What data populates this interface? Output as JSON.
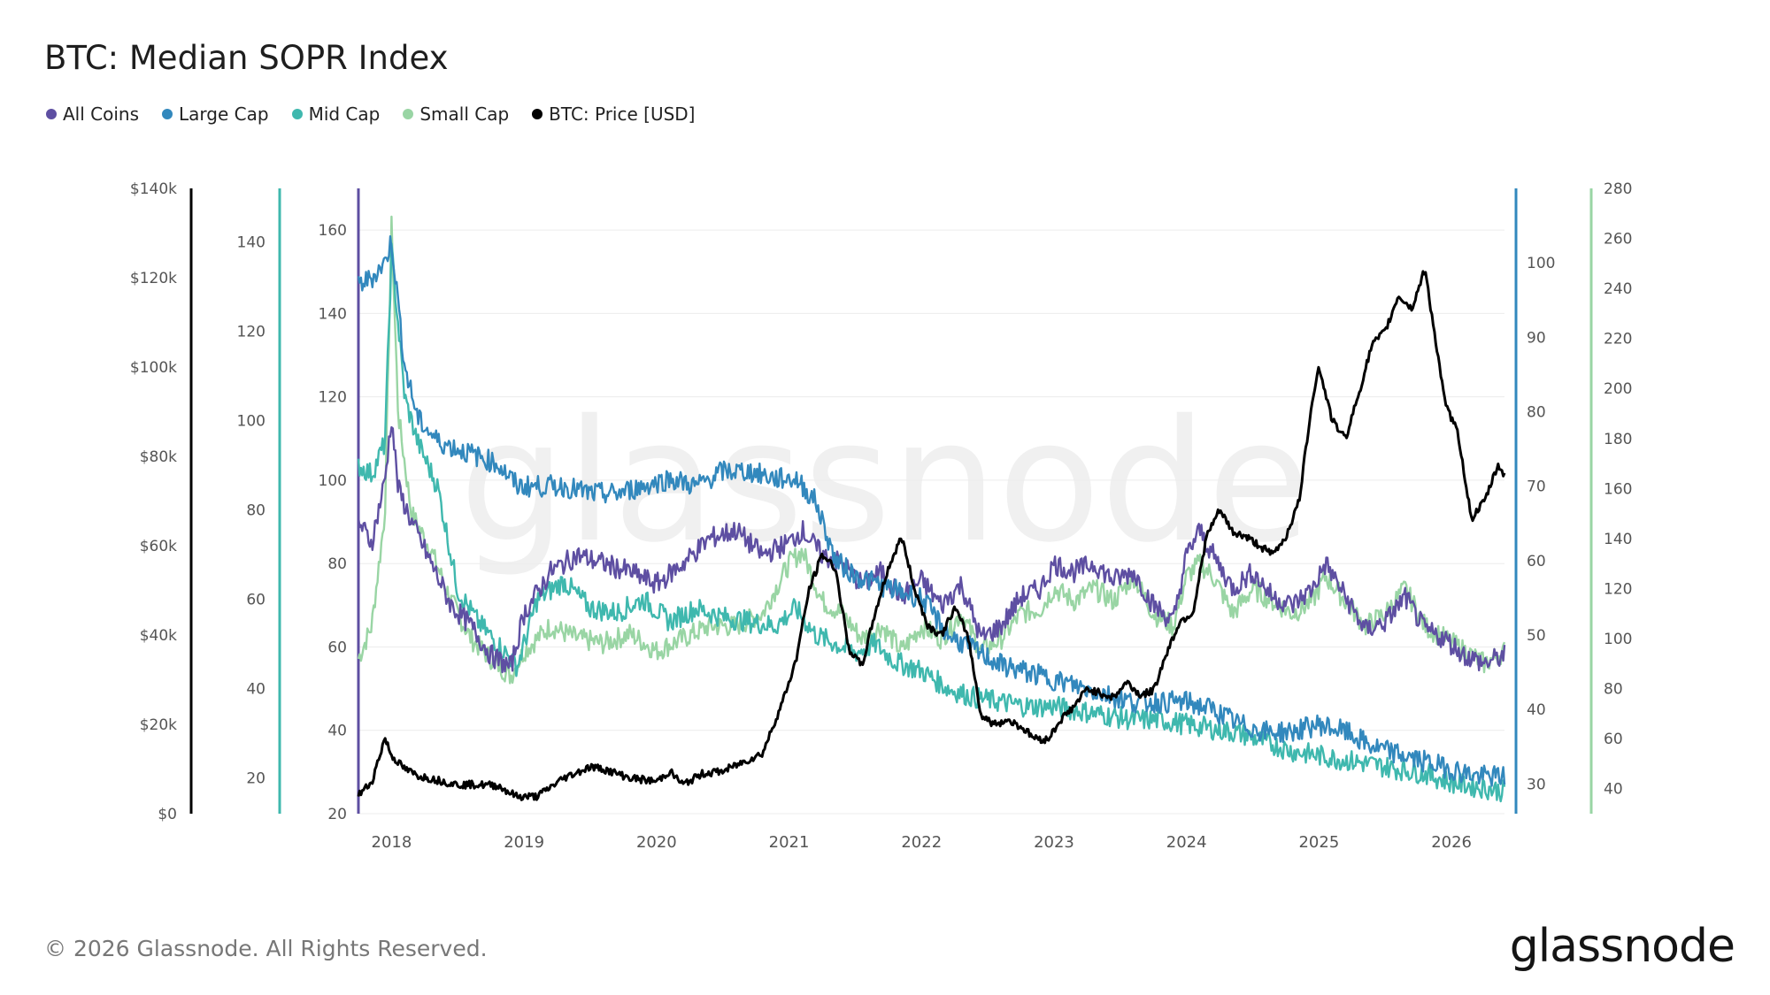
{
  "title": "BTC: Median SOPR Index",
  "footer": "© 2026 Glassnode. All Rights Reserved.",
  "brand": "glassnode",
  "watermark": "glassnode",
  "colors": {
    "all_coins": "#5e4fa2",
    "large_cap": "#3288bd",
    "mid_cap": "#3fb8ae",
    "small_cap": "#99d5a4",
    "price": "#000000"
  },
  "legend": [
    {
      "label": "All Coins",
      "color": "#5e4fa2"
    },
    {
      "label": "Large Cap",
      "color": "#3288bd"
    },
    {
      "label": "Mid Cap",
      "color": "#3fb8ae"
    },
    {
      "label": "Small Cap",
      "color": "#99d5a4"
    },
    {
      "label": "BTC: Price [USD]",
      "color": "#000000"
    }
  ],
  "chart_data": {
    "type": "line",
    "title": "BTC: Median SOPR Index",
    "x_ticks": [
      "2018",
      "2019",
      "2020",
      "2021",
      "2022",
      "2023",
      "2024",
      "2025",
      "2026"
    ],
    "x_range": [
      2017.75,
      2026.4
    ],
    "grid": true,
    "legend_position": "top-left",
    "axes": {
      "price": {
        "ticks": [
          "$0",
          "$20k",
          "$40k",
          "$60k",
          "$80k",
          "$100k",
          "$120k",
          "$140k"
        ],
        "range": [
          0,
          140000
        ],
        "color": "#000000"
      },
      "mid_cap": {
        "ticks": [
          "20",
          "40",
          "60",
          "80",
          "100",
          "120",
          "140"
        ],
        "range": [
          12,
          152
        ],
        "color": "#3fb8ae"
      },
      "all_coins": {
        "ticks": [
          "20",
          "40",
          "60",
          "80",
          "100",
          "120",
          "140",
          "160"
        ],
        "range": [
          20,
          170
        ],
        "color": "#5e4fa2"
      },
      "large_cap": {
        "ticks": [
          "30",
          "40",
          "50",
          "60",
          "70",
          "80",
          "90",
          "100"
        ],
        "range": [
          26,
          110
        ],
        "color": "#3288bd"
      },
      "small_cap": {
        "ticks": [
          "40",
          "60",
          "80",
          "100",
          "120",
          "140",
          "160",
          "180",
          "200",
          "220",
          "240",
          "260",
          "280"
        ],
        "range": [
          30,
          280
        ],
        "color": "#99d5a4"
      }
    },
    "series": [
      {
        "name": "Small Cap",
        "axis": "small_cap",
        "color": "#99d5a4",
        "x": [
          2017.75,
          2017.85,
          2017.95,
          2018.0,
          2018.05,
          2018.15,
          2018.3,
          2018.45,
          2018.6,
          2018.75,
          2018.9,
          2019.0,
          2019.2,
          2019.4,
          2019.6,
          2019.8,
          2020.0,
          2020.2,
          2020.4,
          2020.6,
          2020.8,
          2021.0,
          2021.1,
          2021.25,
          2021.4,
          2021.55,
          2021.7,
          2021.85,
          2022.0,
          2022.15,
          2022.3,
          2022.45,
          2022.6,
          2022.75,
          2022.9,
          2023.0,
          2023.15,
          2023.3,
          2023.45,
          2023.6,
          2023.75,
          2023.9,
          2024.0,
          2024.1,
          2024.2,
          2024.35,
          2024.5,
          2024.65,
          2024.8,
          2024.95,
          2025.05,
          2025.2,
          2025.35,
          2025.5,
          2025.65,
          2025.8,
          2025.95,
          2026.1,
          2026.25,
          2026.4
        ],
        "y": [
          92,
          105,
          150,
          265,
          190,
          150,
          135,
          115,
          100,
          92,
          85,
          95,
          105,
          100,
          98,
          102,
          95,
          100,
          105,
          105,
          110,
          130,
          135,
          115,
          110,
          100,
          105,
          95,
          105,
          100,
          110,
          95,
          100,
          110,
          112,
          120,
          115,
          120,
          115,
          125,
          110,
          105,
          125,
          130,
          125,
          110,
          120,
          115,
          110,
          115,
          125,
          115,
          105,
          110,
          120,
          105,
          100,
          95,
          90,
          95
        ]
      },
      {
        "name": "Mid Cap",
        "axis": "mid_cap",
        "color": "#3fb8ae",
        "x": [
          2017.75,
          2017.85,
          2017.95,
          2018.0,
          2018.1,
          2018.2,
          2018.35,
          2018.5,
          2018.65,
          2018.8,
          2018.95,
          2019.1,
          2019.3,
          2019.5,
          2019.7,
          2019.9,
          2020.1,
          2020.3,
          2020.5,
          2020.7,
          2020.9,
          2021.05,
          2021.2,
          2021.35,
          2021.5,
          2021.65,
          2021.8,
          2022.0,
          2022.2,
          2022.4,
          2022.6,
          2022.8,
          2023.0,
          2023.2,
          2023.4,
          2023.6,
          2023.8,
          2024.0,
          2024.2,
          2024.4,
          2024.6,
          2024.8,
          2025.0,
          2025.2,
          2025.4,
          2025.6,
          2025.8,
          2026.0,
          2026.2,
          2026.4
        ],
        "y": [
          90,
          88,
          95,
          138,
          105,
          95,
          85,
          62,
          55,
          50,
          45,
          60,
          64,
          58,
          57,
          60,
          55,
          58,
          56,
          55,
          54,
          58,
          52,
          50,
          48,
          50,
          46,
          44,
          40,
          38,
          37,
          36,
          36,
          35,
          34,
          33,
          33,
          32,
          31,
          30,
          28,
          26,
          25,
          24,
          23,
          22,
          21,
          19,
          18,
          17
        ]
      },
      {
        "name": "All Coins",
        "axis": "all_coins",
        "color": "#5e4fa2",
        "x": [
          2017.75,
          2017.85,
          2017.95,
          2018.0,
          2018.05,
          2018.15,
          2018.3,
          2018.45,
          2018.6,
          2018.75,
          2018.9,
          2019.0,
          2019.2,
          2019.4,
          2019.6,
          2019.8,
          2020.0,
          2020.2,
          2020.4,
          2020.6,
          2020.8,
          2021.0,
          2021.1,
          2021.25,
          2021.4,
          2021.55,
          2021.7,
          2021.85,
          2022.0,
          2022.15,
          2022.3,
          2022.45,
          2022.6,
          2022.75,
          2022.9,
          2023.0,
          2023.15,
          2023.3,
          2023.45,
          2023.6,
          2023.75,
          2023.9,
          2024.0,
          2024.1,
          2024.2,
          2024.35,
          2024.5,
          2024.65,
          2024.8,
          2024.95,
          2025.05,
          2025.2,
          2025.35,
          2025.5,
          2025.65,
          2025.8,
          2025.95,
          2026.1,
          2026.25,
          2026.4
        ],
        "y": [
          90,
          85,
          100,
          115,
          98,
          90,
          80,
          70,
          65,
          58,
          55,
          68,
          78,
          82,
          80,
          78,
          75,
          80,
          86,
          88,
          82,
          85,
          88,
          82,
          80,
          75,
          78,
          72,
          76,
          70,
          75,
          62,
          65,
          72,
          74,
          80,
          78,
          80,
          76,
          78,
          70,
          66,
          82,
          88,
          82,
          74,
          78,
          72,
          70,
          74,
          80,
          72,
          64,
          66,
          72,
          64,
          62,
          58,
          56,
          58
        ]
      },
      {
        "name": "Large Cap",
        "axis": "large_cap",
        "color": "#3288bd",
        "x": [
          2017.75,
          2017.85,
          2017.95,
          2018.0,
          2018.1,
          2018.2,
          2018.35,
          2018.5,
          2018.65,
          2018.8,
          2018.95,
          2019.1,
          2019.3,
          2019.5,
          2019.7,
          2019.9,
          2020.1,
          2020.3,
          2020.5,
          2020.7,
          2020.9,
          2021.05,
          2021.2,
          2021.35,
          2021.5,
          2021.65,
          2021.8,
          2022.0,
          2022.2,
          2022.4,
          2022.6,
          2022.8,
          2023.0,
          2023.2,
          2023.4,
          2023.6,
          2023.8,
          2024.0,
          2024.2,
          2024.4,
          2024.6,
          2024.8,
          2025.0,
          2025.2,
          2025.4,
          2025.6,
          2025.8,
          2026.0,
          2026.2,
          2026.4
        ],
        "y": [
          97,
          98,
          100,
          103,
          86,
          79,
          76,
          75,
          74,
          73,
          70,
          70,
          70,
          69,
          69,
          70,
          71,
          70,
          72,
          72,
          71,
          71,
          68,
          60,
          58,
          57,
          56,
          55,
          50,
          48,
          46,
          45,
          44,
          43,
          42,
          41,
          41,
          41,
          40,
          38,
          37,
          37,
          38,
          37,
          35,
          34,
          33,
          32,
          31,
          31
        ]
      },
      {
        "name": "BTC: Price [USD]",
        "axis": "price",
        "color": "#000000",
        "x": [
          2017.75,
          2017.85,
          2017.95,
          2018.0,
          2018.1,
          2018.2,
          2018.35,
          2018.5,
          2018.65,
          2018.8,
          2018.95,
          2019.1,
          2019.3,
          2019.5,
          2019.6,
          2019.8,
          2020.0,
          2020.1,
          2020.2,
          2020.35,
          2020.5,
          2020.65,
          2020.8,
          2020.95,
          2021.05,
          2021.15,
          2021.25,
          2021.35,
          2021.45,
          2021.55,
          2021.65,
          2021.75,
          2021.85,
          2021.95,
          2022.05,
          2022.15,
          2022.25,
          2022.35,
          2022.45,
          2022.55,
          2022.65,
          2022.75,
          2022.85,
          2022.95,
          2023.05,
          2023.15,
          2023.25,
          2023.35,
          2023.45,
          2023.55,
          2023.65,
          2023.75,
          2023.85,
          2023.95,
          2024.05,
          2024.15,
          2024.25,
          2024.35,
          2024.45,
          2024.55,
          2024.65,
          2024.75,
          2024.85,
          2024.95,
          2025.0,
          2025.1,
          2025.2,
          2025.3,
          2025.4,
          2025.5,
          2025.6,
          2025.7,
          2025.8,
          2025.85,
          2025.95,
          2026.05,
          2026.15,
          2026.25,
          2026.35,
          2026.4
        ],
        "y": [
          4200,
          7000,
          17000,
          13000,
          10000,
          8500,
          7500,
          6500,
          6500,
          6300,
          3800,
          3900,
          8000,
          10500,
          10000,
          8000,
          7200,
          9500,
          6500,
          9000,
          9500,
          11500,
          13500,
          25000,
          34000,
          50000,
          58000,
          55000,
          37000,
          33000,
          45000,
          55000,
          62000,
          50000,
          42000,
          40000,
          46000,
          40000,
          22000,
          20000,
          21000,
          19500,
          17000,
          16500,
          21000,
          24000,
          28000,
          27000,
          26000,
          29500,
          26500,
          27500,
          36000,
          43000,
          45000,
          62000,
          68000,
          63000,
          62000,
          60000,
          58000,
          62000,
          70000,
          93000,
          100000,
          88000,
          84000,
          94000,
          105000,
          108000,
          116000,
          113000,
          122000,
          112000,
          92000,
          85000,
          66000,
          70000,
          78000,
          76000
        ]
      }
    ]
  }
}
